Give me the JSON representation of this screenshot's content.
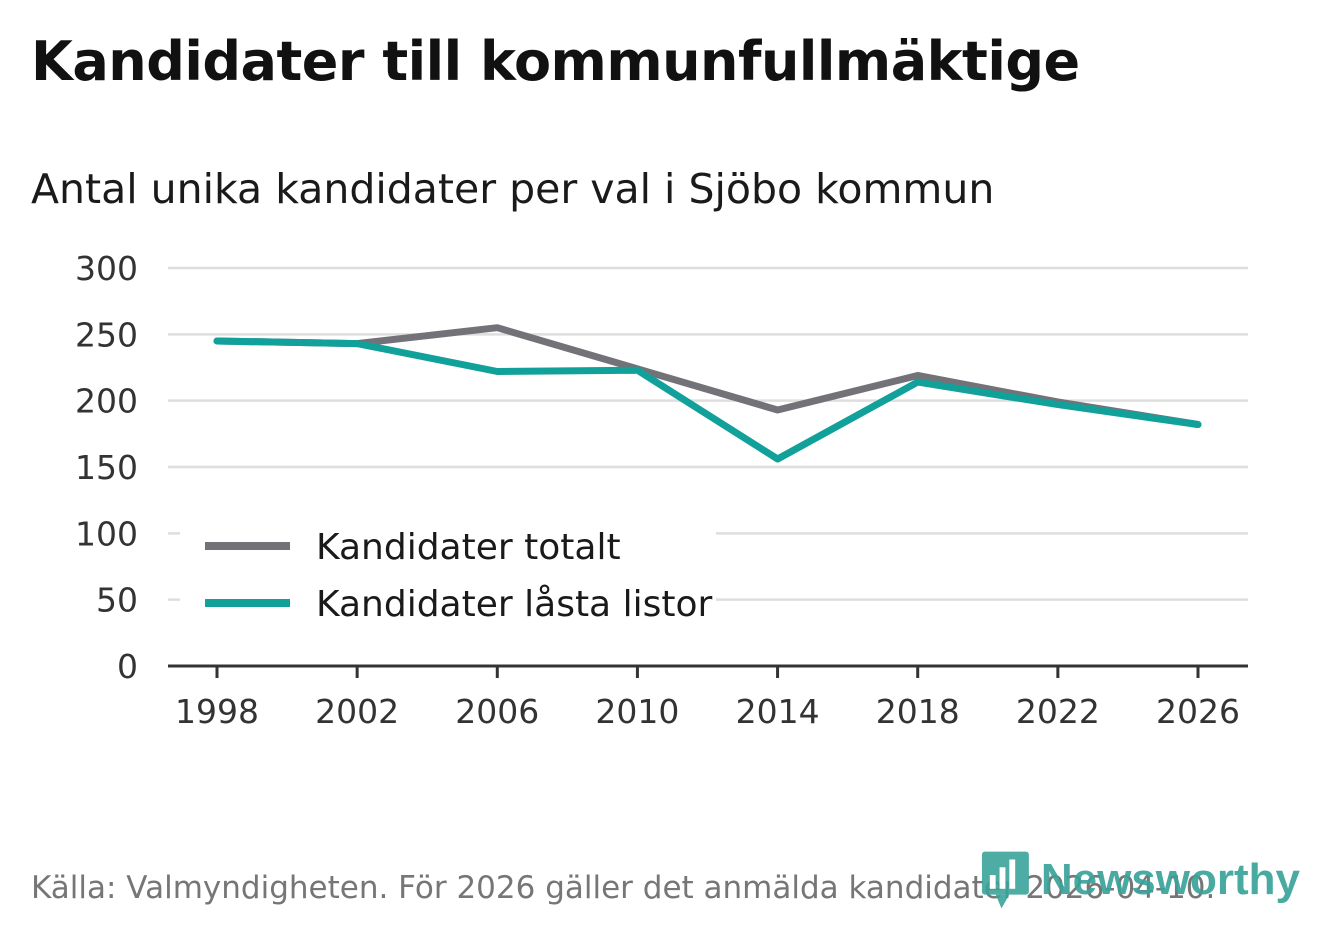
{
  "header": {
    "title": "Kandidater till kommunfullmäktige",
    "subtitle": "Antal unika kandidater per val i Sjöbo kommun"
  },
  "footer": {
    "source": "Källa: Valmyndigheten. För 2026 gäller det anmälda kandidater 2026-04-10."
  },
  "logo": {
    "text": "Newsworthy",
    "icon": "bar-chart-speech-bubble-icon"
  },
  "colors": {
    "total": "#737278",
    "locked": "#11a19a",
    "grid": "#dedede",
    "axis": "#333333"
  },
  "chart_data": {
    "type": "line",
    "title": "Kandidater till kommunfullmäktige",
    "subtitle": "Antal unika kandidater per val i Sjöbo kommun",
    "xlabel": "",
    "ylabel": "",
    "x": [
      1998,
      2002,
      2006,
      2010,
      2014,
      2018,
      2022,
      2026
    ],
    "ylim": [
      0,
      300
    ],
    "yticks": [
      0,
      50,
      100,
      150,
      200,
      250,
      300
    ],
    "grid": true,
    "legend_position": "bottom-left",
    "series": [
      {
        "name": "Kandidater totalt",
        "color": "#737278",
        "values": [
          245,
          243,
          255,
          224,
          193,
          219,
          199,
          182
        ]
      },
      {
        "name": "Kandidater låsta listor",
        "color": "#11a19a",
        "values": [
          245,
          243,
          222,
          223,
          156,
          214,
          197,
          182
        ]
      }
    ]
  }
}
